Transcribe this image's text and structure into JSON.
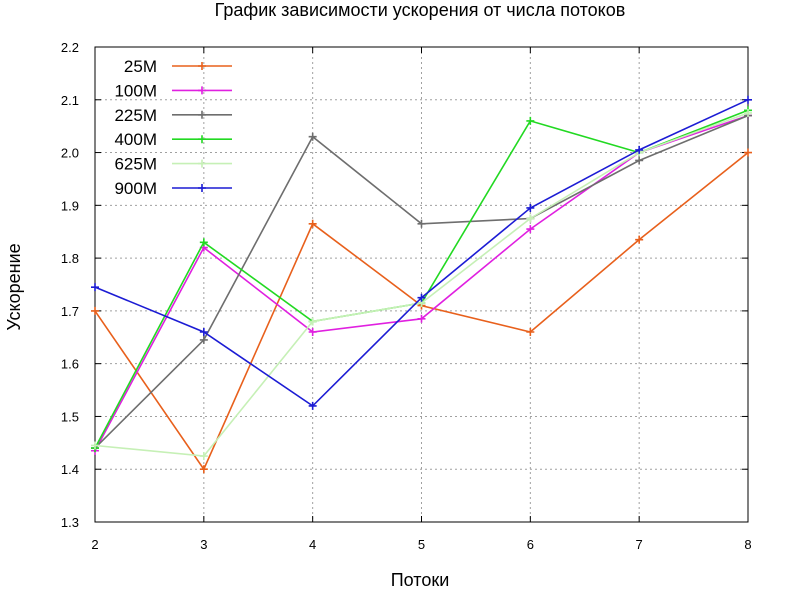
{
  "chart_data": {
    "type": "line",
    "title": "График зависимости ускорения от числа потоков",
    "xlabel": "Потоки",
    "ylabel": "Ускорение",
    "x": [
      2,
      3,
      4,
      5,
      6,
      7,
      8
    ],
    "xticks": [
      "2",
      "3",
      "4",
      "5",
      "6",
      "7",
      "8"
    ],
    "yticks": [
      "1.3",
      "1.4",
      "1.5",
      "1.6",
      "1.7",
      "1.8",
      "1.9",
      "2.0",
      "2.1",
      "2.2"
    ],
    "xlim": [
      2,
      8
    ],
    "ylim": [
      1.3,
      2.2
    ],
    "grid": true,
    "legend_position": "top-left",
    "series": [
      {
        "name": "25M",
        "color": "#e8601c",
        "values": [
          1.7,
          1.4,
          1.865,
          1.71,
          1.66,
          1.835,
          2.0
        ]
      },
      {
        "name": "100M",
        "color": "#e020e0",
        "values": [
          1.435,
          1.82,
          1.66,
          1.685,
          1.855,
          2.0,
          2.07
        ]
      },
      {
        "name": "225M",
        "color": "#6e6e6e",
        "values": [
          1.44,
          1.645,
          2.03,
          1.865,
          1.875,
          1.985,
          2.07
        ]
      },
      {
        "name": "400M",
        "color": "#22d922",
        "values": [
          1.44,
          1.83,
          1.68,
          1.715,
          2.06,
          2.0,
          2.08
        ]
      },
      {
        "name": "625M",
        "color": "#c6f0b6",
        "values": [
          1.445,
          1.425,
          1.68,
          1.715,
          1.875,
          2.0,
          2.075
        ]
      },
      {
        "name": "900M",
        "color": "#1c1cd4",
        "values": [
          1.745,
          1.66,
          1.52,
          1.725,
          1.895,
          2.005,
          2.1
        ]
      }
    ]
  }
}
